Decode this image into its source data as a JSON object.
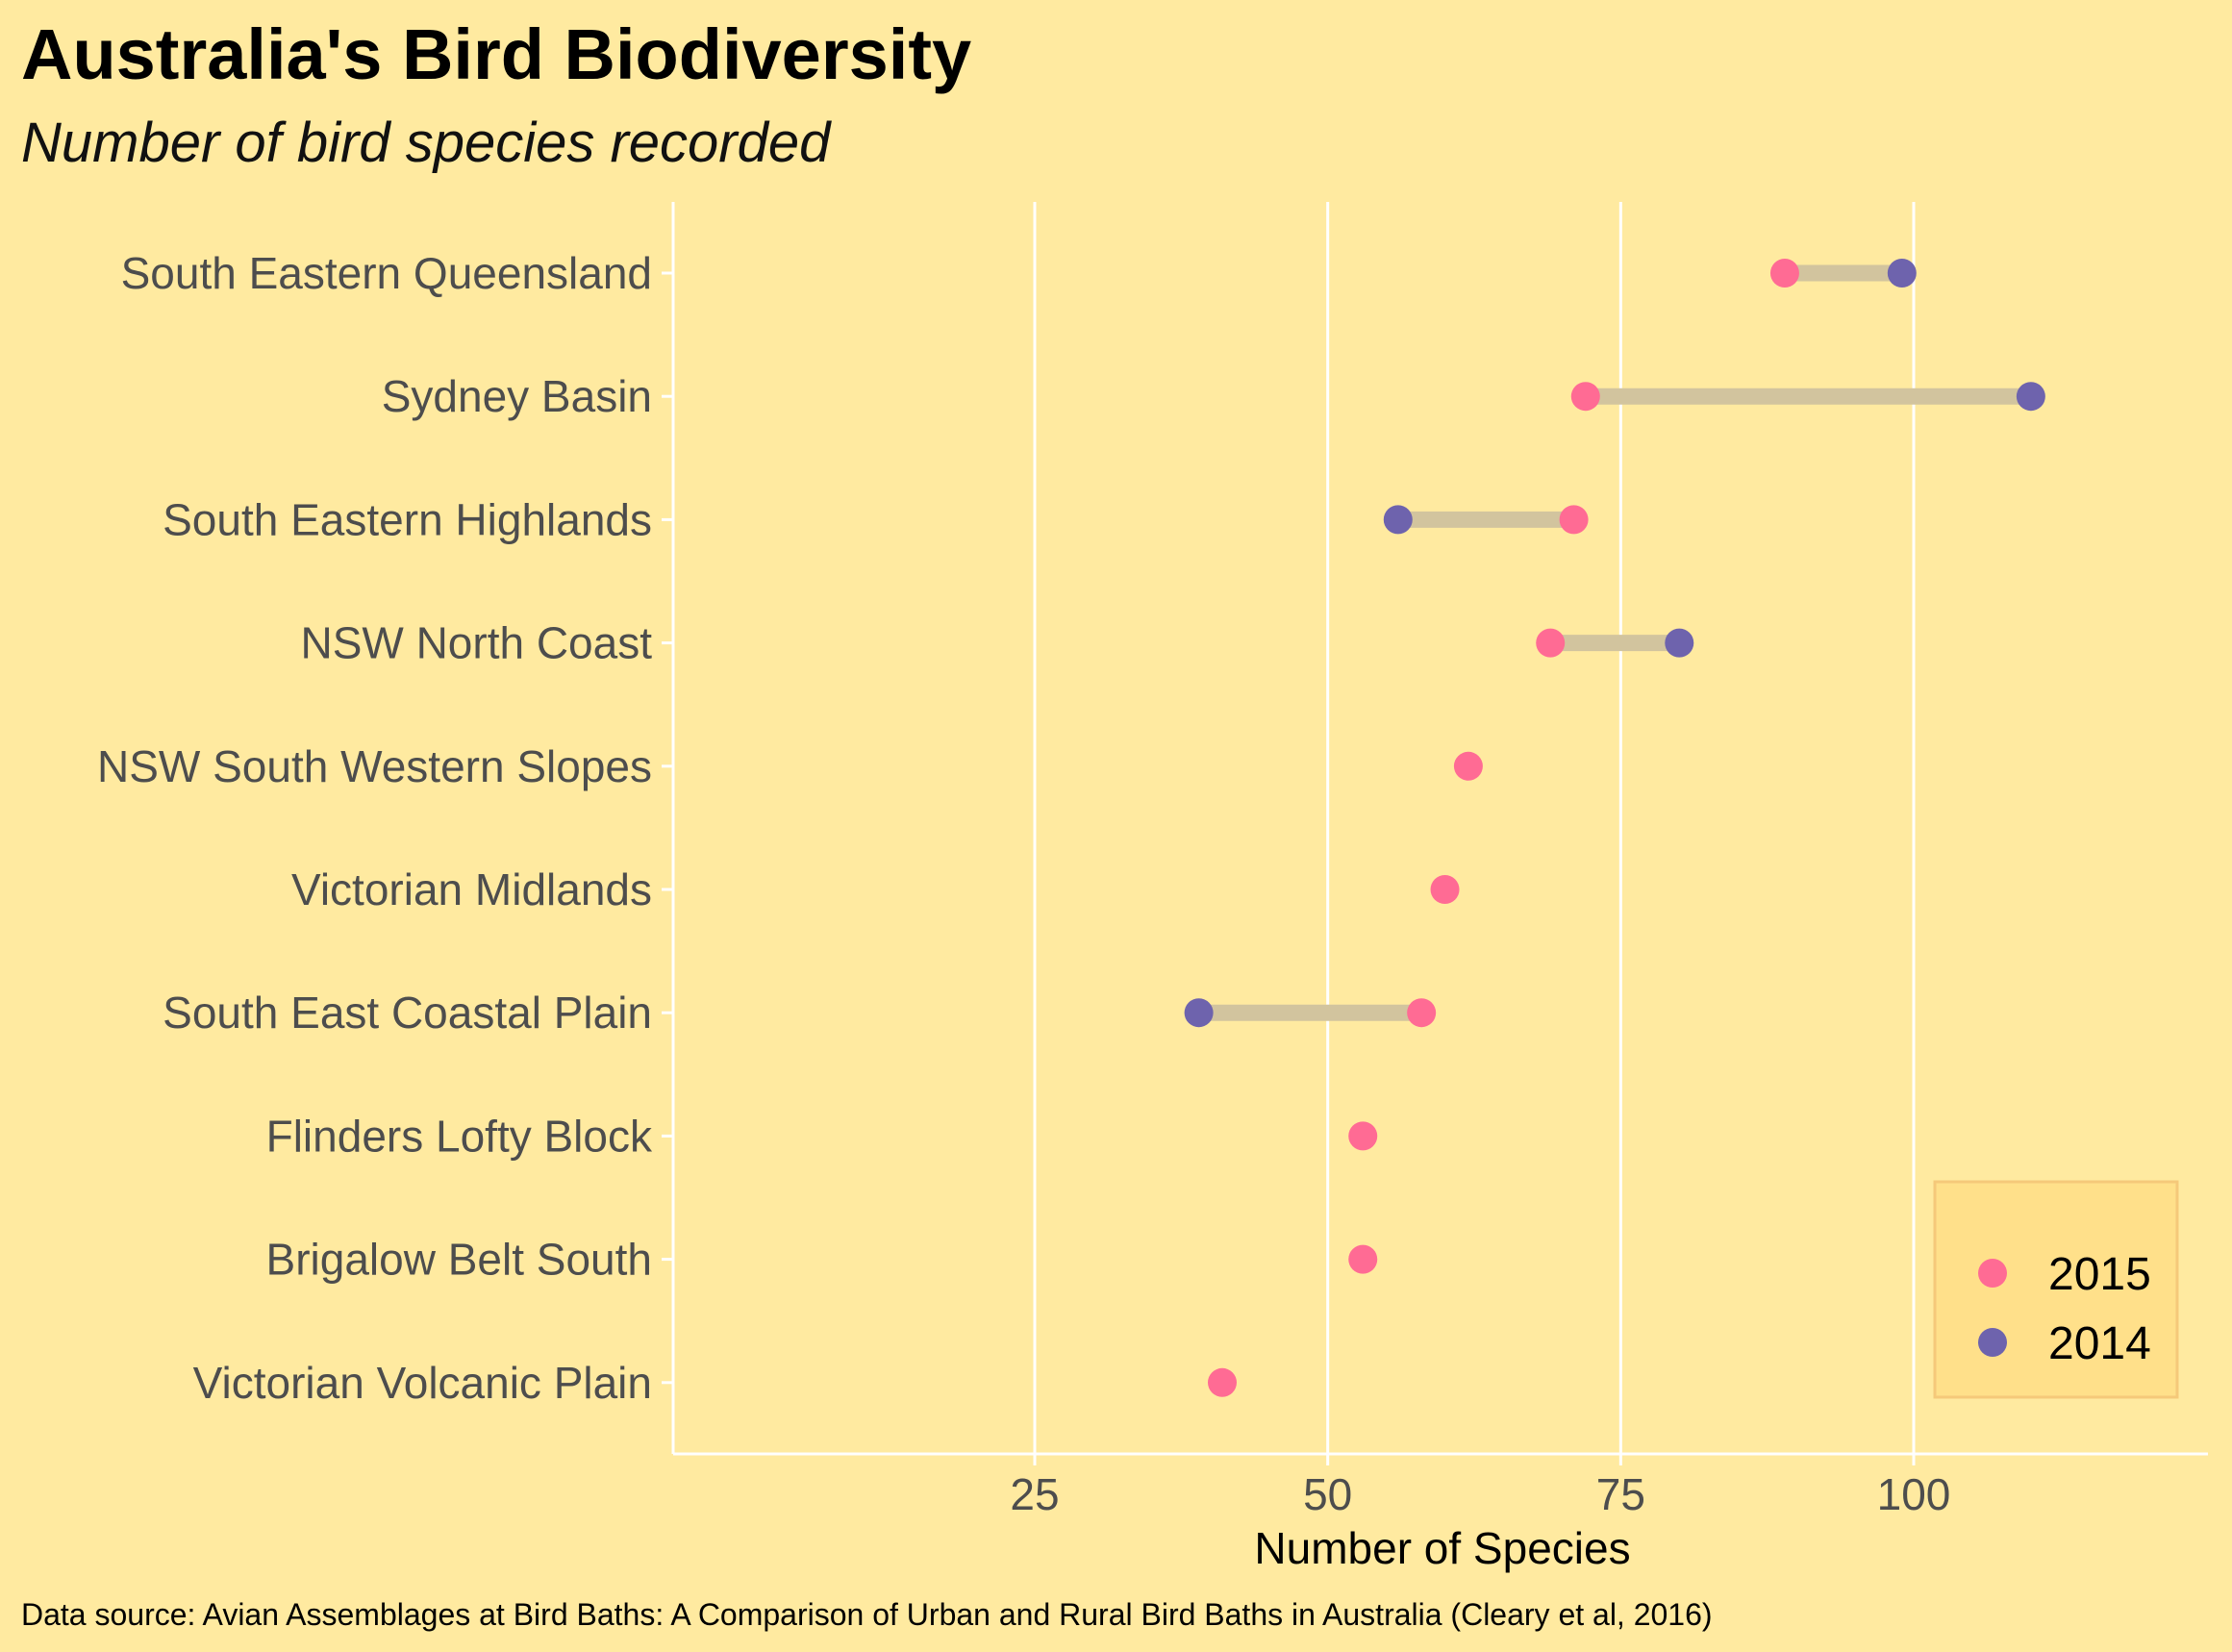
{
  "chart_data": {
    "type": "dumbbell",
    "title": "Australia's Bird Biodiversity",
    "subtitle": "Number of bird species recorded",
    "xlabel": "Number of Species",
    "ylabel": "",
    "caption": "Data source: Avian Assemblages at Bird Baths: A Comparison of Urban and Rural Bird Baths in Australia (Cleary et al, 2016)",
    "xlim": [
      0,
      120
    ],
    "x_ticks": [
      25,
      50,
      75,
      100
    ],
    "x_tick_labels": [
      "25",
      "50",
      "75",
      "100"
    ],
    "grid": "vertical",
    "legend_position": "bottom-right",
    "categories": [
      "South Eastern Queensland",
      "Sydney Basin",
      "South Eastern Highlands",
      "NSW North Coast",
      "NSW South Western Slopes",
      "Victorian Midlands",
      "South East Coastal Plain",
      "Flinders Lofty Block",
      "Brigalow Belt South",
      "Victorian Volcanic Plain"
    ],
    "series": [
      {
        "name": "2015",
        "color": "#ff6b94",
        "values": [
          89,
          72,
          71,
          69,
          62,
          60,
          58,
          53,
          53,
          41
        ]
      },
      {
        "name": "2014",
        "color": "#6e63ad",
        "values": [
          99,
          110,
          56,
          80,
          null,
          null,
          39,
          null,
          null,
          null
        ]
      }
    ],
    "segment_color": "#d2c49e"
  }
}
